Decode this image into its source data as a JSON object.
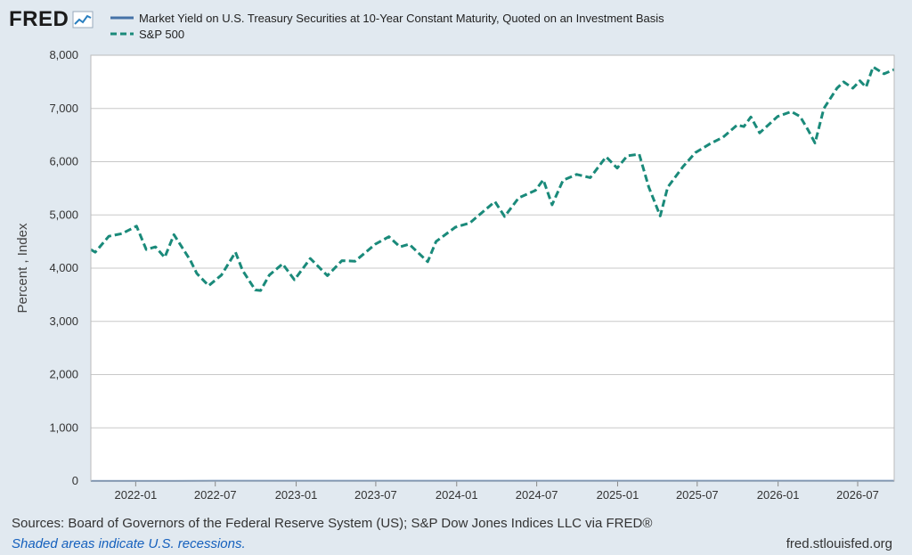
{
  "header": {
    "logo_text": "FRED",
    "logo_icon": "line-chart-icon"
  },
  "footer": {
    "sources": "Sources: Board of Governors of the Federal Reserve System (US); S&P Dow Jones Indices LLC via FRED®",
    "shaded": "Shaded areas indicate U.S. recessions.",
    "site": "fred.stlouisfed.org"
  },
  "colors": {
    "background": "#e1e9f0",
    "plot_background": "#ffffff",
    "grid": "#c8c8c8",
    "series_treasury": "#4572a7",
    "series_sp500": "#1a8a7a"
  },
  "chart_data": {
    "type": "line",
    "title": "",
    "xlabel": "",
    "ylabel": "Percent , Index",
    "ylim": [
      0,
      8000
    ],
    "yticks": [
      0,
      1000,
      2000,
      3000,
      4000,
      5000,
      6000,
      7000,
      8000
    ],
    "ytick_labels": [
      "0",
      "1,000",
      "2,000",
      "3,000",
      "4,000",
      "5,000",
      "6,000",
      "7,000",
      "8,000"
    ],
    "xlim": [
      "2021-09-21",
      "2026-09-22"
    ],
    "xticks": [
      "2022-01-01",
      "2022-07-01",
      "2023-01-01",
      "2023-07-01",
      "2024-01-01",
      "2024-07-01",
      "2025-01-01",
      "2025-07-01",
      "2026-01-01",
      "2026-07-01"
    ],
    "xtick_labels": [
      "2022-01",
      "2022-07",
      "2023-01",
      "2023-07",
      "2024-01",
      "2024-07",
      "2025-01",
      "2025-07",
      "2026-01",
      "2026-07"
    ],
    "grid": true,
    "legend": "top-left",
    "series": [
      {
        "name": "Market Yield on U.S. Treasury Securities at 10-Year Constant Maturity, Quoted on an Investment Basis",
        "style": "solid",
        "points": [
          [
            "2021-09-21",
            1.3
          ],
          [
            "2022-01-01",
            1.6
          ],
          [
            "2022-04-01",
            2.5
          ],
          [
            "2022-07-01",
            3.0
          ],
          [
            "2022-10-15",
            4.1
          ],
          [
            "2023-01-01",
            3.8
          ],
          [
            "2023-04-01",
            3.5
          ],
          [
            "2023-07-01",
            3.9
          ],
          [
            "2023-10-20",
            4.9
          ],
          [
            "2024-01-01",
            3.9
          ],
          [
            "2024-04-15",
            4.6
          ],
          [
            "2024-09-15",
            3.7
          ],
          [
            "2025-01-10",
            4.7
          ],
          [
            "2025-04-01",
            4.2
          ],
          [
            "2025-07-01",
            4.3
          ],
          [
            "2025-10-01",
            4.1
          ],
          [
            "2026-01-01",
            4.2
          ],
          [
            "2026-04-01",
            4.3
          ],
          [
            "2026-07-01",
            4.4
          ],
          [
            "2026-09-22",
            4.4
          ]
        ]
      },
      {
        "name": "S&P 500",
        "style": "dashed",
        "points": [
          [
            "2021-09-21",
            4350
          ],
          [
            "2021-10-01",
            4300
          ],
          [
            "2021-11-01",
            4600
          ],
          [
            "2021-12-01",
            4650
          ],
          [
            "2022-01-03",
            4790
          ],
          [
            "2022-01-25",
            4350
          ],
          [
            "2022-02-15",
            4400
          ],
          [
            "2022-03-08",
            4200
          ],
          [
            "2022-03-29",
            4630
          ],
          [
            "2022-05-05",
            4150
          ],
          [
            "2022-05-20",
            3900
          ],
          [
            "2022-06-16",
            3670
          ],
          [
            "2022-07-15",
            3870
          ],
          [
            "2022-08-16",
            4300
          ],
          [
            "2022-09-01",
            3960
          ],
          [
            "2022-09-30",
            3590
          ],
          [
            "2022-10-12",
            3580
          ],
          [
            "2022-11-01",
            3870
          ],
          [
            "2022-12-01",
            4080
          ],
          [
            "2022-12-28",
            3780
          ],
          [
            "2023-02-02",
            4180
          ],
          [
            "2023-03-13",
            3860
          ],
          [
            "2023-04-15",
            4140
          ],
          [
            "2023-05-15",
            4130
          ],
          [
            "2023-06-30",
            4450
          ],
          [
            "2023-07-31",
            4590
          ],
          [
            "2023-08-25",
            4400
          ],
          [
            "2023-09-15",
            4450
          ],
          [
            "2023-10-27",
            4120
          ],
          [
            "2023-11-15",
            4500
          ],
          [
            "2023-12-29",
            4770
          ],
          [
            "2024-01-31",
            4850
          ],
          [
            "2024-03-28",
            5250
          ],
          [
            "2024-04-19",
            4970
          ],
          [
            "2024-05-21",
            5320
          ],
          [
            "2024-06-28",
            5460
          ],
          [
            "2024-07-16",
            5660
          ],
          [
            "2024-08-05",
            5190
          ],
          [
            "2024-08-30",
            5650
          ],
          [
            "2024-09-30",
            5760
          ],
          [
            "2024-10-31",
            5700
          ],
          [
            "2024-11-30",
            6030
          ],
          [
            "2024-12-06",
            6090
          ],
          [
            "2024-12-31",
            5880
          ],
          [
            "2025-01-23",
            6110
          ],
          [
            "2025-02-19",
            6140
          ],
          [
            "2025-03-13",
            5520
          ],
          [
            "2025-04-08",
            4980
          ],
          [
            "2025-04-25",
            5520
          ],
          [
            "2025-05-30",
            5910
          ],
          [
            "2025-06-27",
            6170
          ],
          [
            "2025-07-31",
            6340
          ],
          [
            "2025-08-29",
            6460
          ],
          [
            "2025-09-30",
            6690
          ],
          [
            "2025-10-15",
            6660
          ],
          [
            "2025-10-31",
            6840
          ],
          [
            "2025-11-20",
            6540
          ],
          [
            "2025-12-31",
            6850
          ],
          [
            "2026-01-31",
            6940
          ],
          [
            "2026-02-20",
            6850
          ],
          [
            "2026-03-10",
            6600
          ],
          [
            "2026-03-26",
            6350
          ],
          [
            "2026-04-15",
            7000
          ],
          [
            "2026-05-15",
            7380
          ],
          [
            "2026-05-30",
            7500
          ],
          [
            "2026-06-20",
            7380
          ],
          [
            "2026-07-06",
            7520
          ],
          [
            "2026-07-20",
            7400
          ],
          [
            "2026-08-05",
            7780
          ],
          [
            "2026-08-30",
            7650
          ],
          [
            "2026-09-22",
            7730
          ]
        ]
      }
    ]
  }
}
